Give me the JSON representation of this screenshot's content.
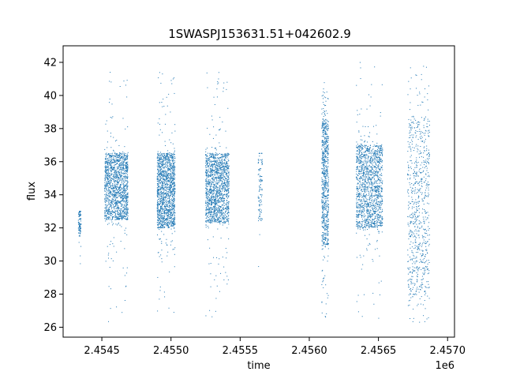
{
  "chart_data": {
    "type": "scatter",
    "title": "1SWASPJ153631.51+042602.9",
    "xlabel": "time",
    "ylabel": "flux",
    "x_offset_label": "1e6",
    "xlim": [
      2.45422,
      2.45705
    ],
    "ylim": [
      25.4,
      43.0
    ],
    "x_ticks": [
      2.4545,
      2.455,
      2.4555,
      2.456,
      2.4565,
      2.457
    ],
    "x_tick_labels": [
      "2.4545",
      "2.4550",
      "2.4555",
      "2.4560",
      "2.4565",
      "2.4570"
    ],
    "y_ticks": [
      26,
      28,
      30,
      32,
      34,
      36,
      38,
      40,
      42
    ],
    "y_tick_labels": [
      "26",
      "28",
      "30",
      "32",
      "34",
      "36",
      "38",
      "40",
      "42"
    ],
    "grid": false,
    "marker_color": "#1f77b4",
    "series": [
      {
        "clusters": [
          {
            "x_range": [
              2.45433,
              2.45435
            ],
            "y_core": [
              31.5,
              33.0
            ],
            "y_spread": [
              28.3,
              33.0
            ],
            "density": "sparse"
          },
          {
            "x_range": [
              2.45452,
              2.45469
            ],
            "y_core": [
              32.5,
              36.5
            ],
            "y_spread": [
              26.3,
              41.9
            ],
            "density": "dense"
          },
          {
            "x_range": [
              2.4549,
              2.45503
            ],
            "y_core": [
              32.0,
              36.5
            ],
            "y_spread": [
              26.5,
              41.7
            ],
            "density": "dense"
          },
          {
            "x_range": [
              2.45525,
              2.45542
            ],
            "y_core": [
              32.3,
              36.5
            ],
            "y_spread": [
              26.3,
              41.5
            ],
            "density": "dense"
          },
          {
            "x_range": [
              2.45563,
              2.45566
            ],
            "y_core": [
              32.5,
              36.5
            ],
            "y_spread": [
              29.0,
              36.5
            ],
            "density": "sparse"
          },
          {
            "x_range": [
              2.45609,
              2.45614
            ],
            "y_core": [
              31.0,
              38.5
            ],
            "y_spread": [
              26.3,
              41.2
            ],
            "density": "medium"
          },
          {
            "x_range": [
              2.45634,
              2.45653
            ],
            "y_core": [
              32.0,
              37.0
            ],
            "y_spread": [
              26.4,
              42.0
            ],
            "density": "dense"
          },
          {
            "x_range": [
              2.45671,
              2.45687
            ],
            "y_core": [
              28.0,
              38.5
            ],
            "y_spread": [
              26.2,
              41.8
            ],
            "density": "medium"
          }
        ]
      }
    ]
  }
}
